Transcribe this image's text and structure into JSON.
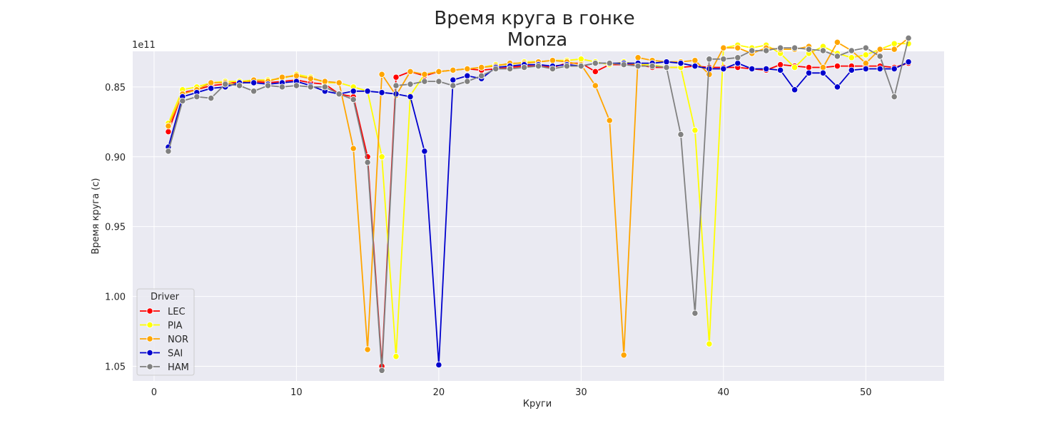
{
  "chart_data": {
    "type": "line",
    "title": "Время круга в гонке",
    "subtitle": "Monza",
    "xlabel": "Круги",
    "ylabel": "Время круга (с)",
    "offset_text": "1e11",
    "y_inverted": true,
    "xlim": [
      -1.5,
      55.5
    ],
    "ylim": [
      0.8245,
      1.0605
    ],
    "x_ticks": [
      0,
      10,
      20,
      30,
      40,
      50
    ],
    "y_ticks": [
      0.85,
      0.9,
      0.95,
      1.0,
      1.05
    ],
    "y_tick_labels": [
      "0.85",
      "0.90",
      "0.95",
      "1.00",
      "1.05"
    ],
    "grid": true,
    "background": "#eaeaf2",
    "legend": {
      "title": "Driver",
      "position": "bottom-left"
    },
    "x": [
      1,
      2,
      3,
      4,
      5,
      6,
      7,
      8,
      9,
      10,
      11,
      12,
      13,
      14,
      15,
      16,
      17,
      18,
      19,
      20,
      21,
      22,
      23,
      24,
      25,
      26,
      27,
      28,
      29,
      30,
      31,
      32,
      33,
      34,
      35,
      36,
      37,
      38,
      39,
      40,
      41,
      42,
      43,
      44,
      45,
      46,
      47,
      48,
      49,
      50,
      51,
      52,
      53
    ],
    "series": [
      {
        "name": "LEC",
        "color": "#ff0000",
        "values": [
          0.882,
          0.854,
          0.852,
          0.849,
          0.848,
          0.846,
          0.846,
          0.847,
          0.846,
          0.845,
          0.847,
          0.848,
          0.855,
          0.857,
          0.9,
          1.05,
          0.843,
          0.839,
          0.842,
          0.839,
          0.838,
          0.837,
          0.838,
          0.837,
          0.836,
          0.835,
          0.835,
          0.836,
          0.833,
          0.833,
          0.839,
          0.834,
          0.834,
          0.834,
          0.836,
          0.836,
          0.836,
          0.835,
          0.836,
          0.836,
          0.836,
          0.837,
          0.838,
          0.834,
          0.835,
          0.836,
          0.836,
          0.835,
          0.835,
          0.835,
          0.835,
          0.836,
          0.833
        ]
      },
      {
        "name": "PIA",
        "color": "#ffff00",
        "values": [
          0.876,
          0.852,
          0.85,
          0.847,
          0.846,
          0.846,
          0.845,
          0.845,
          0.844,
          0.841,
          0.843,
          0.847,
          0.847,
          0.85,
          0.853,
          0.9,
          1.043,
          0.856,
          0.841,
          0.839,
          0.838,
          0.837,
          0.836,
          0.834,
          0.834,
          0.832,
          0.832,
          0.831,
          0.831,
          0.83,
          0.832,
          0.834,
          0.832,
          0.834,
          0.834,
          0.836,
          0.836,
          0.881,
          1.034,
          0.822,
          0.82,
          0.822,
          0.82,
          0.826,
          0.836,
          0.826,
          0.821,
          0.826,
          0.829,
          0.827,
          0.823,
          0.819,
          0.819
        ]
      },
      {
        "name": "NOR",
        "color": "#ffa500",
        "values": [
          0.878,
          0.855,
          0.852,
          0.847,
          0.847,
          0.848,
          0.845,
          0.846,
          0.843,
          0.842,
          0.844,
          0.846,
          0.847,
          0.894,
          1.038,
          0.841,
          0.856,
          0.839,
          0.841,
          0.839,
          0.838,
          0.837,
          0.836,
          0.835,
          0.833,
          0.833,
          0.832,
          0.831,
          0.832,
          0.834,
          0.849,
          0.874,
          1.042,
          0.829,
          0.831,
          0.832,
          0.832,
          0.831,
          0.841,
          0.822,
          0.822,
          0.826,
          0.822,
          0.823,
          0.823,
          0.821,
          0.836,
          0.818,
          0.824,
          0.833,
          0.823,
          0.823,
          0.815
        ]
      },
      {
        "name": "SAI",
        "color": "#0000cd",
        "values": [
          0.893,
          0.857,
          0.854,
          0.851,
          0.85,
          0.847,
          0.847,
          0.848,
          0.847,
          0.846,
          0.849,
          0.853,
          0.855,
          0.853,
          0.853,
          0.854,
          0.855,
          0.857,
          0.896,
          1.049,
          0.845,
          0.842,
          0.844,
          0.836,
          0.835,
          0.834,
          0.834,
          0.835,
          0.834,
          0.835,
          0.833,
          0.833,
          0.833,
          0.833,
          0.833,
          0.832,
          0.833,
          0.835,
          0.837,
          0.837,
          0.833,
          0.837,
          0.837,
          0.838,
          0.852,
          0.84,
          0.84,
          0.85,
          0.838,
          0.837,
          0.837,
          0.837,
          0.832
        ]
      },
      {
        "name": "HAM",
        "color": "#808080",
        "values": [
          0.896,
          0.86,
          0.857,
          0.858,
          0.848,
          0.849,
          0.853,
          0.849,
          0.85,
          0.849,
          0.85,
          0.85,
          0.855,
          0.859,
          0.904,
          1.053,
          0.849,
          0.848,
          0.846,
          0.846,
          0.849,
          0.846,
          0.842,
          0.837,
          0.837,
          0.836,
          0.835,
          0.837,
          0.835,
          0.835,
          0.833,
          0.833,
          0.834,
          0.835,
          0.835,
          0.836,
          0.884,
          1.012,
          0.83,
          0.83,
          0.829,
          0.824,
          0.824,
          0.822,
          0.822,
          0.823,
          0.824,
          0.828,
          0.824,
          0.822,
          0.828,
          0.857,
          0.815
        ]
      }
    ]
  }
}
